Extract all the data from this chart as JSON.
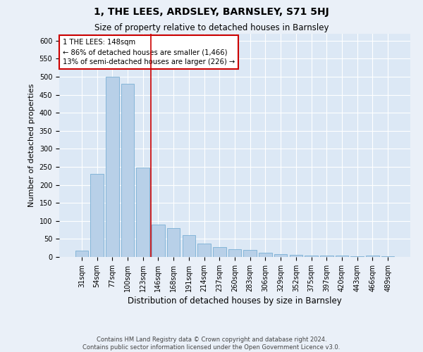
{
  "title": "1, THE LEES, ARDSLEY, BARNSLEY, S71 5HJ",
  "subtitle": "Size of property relative to detached houses in Barnsley",
  "xlabel": "Distribution of detached houses by size in Barnsley",
  "ylabel": "Number of detached properties",
  "footer": "Contains HM Land Registry data © Crown copyright and database right 2024.\nContains public sector information licensed under the Open Government Licence v3.0.",
  "categories": [
    "31sqm",
    "54sqm",
    "77sqm",
    "100sqm",
    "123sqm",
    "146sqm",
    "168sqm",
    "191sqm",
    "214sqm",
    "237sqm",
    "260sqm",
    "283sqm",
    "306sqm",
    "329sqm",
    "352sqm",
    "375sqm",
    "397sqm",
    "420sqm",
    "443sqm",
    "466sqm",
    "489sqm"
  ],
  "values": [
    18,
    230,
    500,
    480,
    248,
    90,
    80,
    60,
    37,
    27,
    22,
    20,
    12,
    8,
    5,
    4,
    4,
    3,
    1,
    3,
    1
  ],
  "bar_color": "#b8d0e8",
  "bar_edge_color": "#7aafd4",
  "property_line_index": 5,
  "annotation_text": "1 THE LEES: 148sqm\n← 86% of detached houses are smaller (1,466)\n13% of semi-detached houses are larger (226) →",
  "annotation_box_color": "#ffffff",
  "annotation_box_edge": "#cc0000",
  "line_color": "#cc0000",
  "ylim": [
    0,
    620
  ],
  "yticks": [
    0,
    50,
    100,
    150,
    200,
    250,
    300,
    350,
    400,
    450,
    500,
    550,
    600
  ],
  "background_color": "#eaf0f8",
  "plot_bg_color": "#dce8f5",
  "title_fontsize": 10,
  "subtitle_fontsize": 8.5,
  "ylabel_fontsize": 8,
  "xlabel_fontsize": 8.5,
  "tick_fontsize": 7,
  "footer_fontsize": 6
}
